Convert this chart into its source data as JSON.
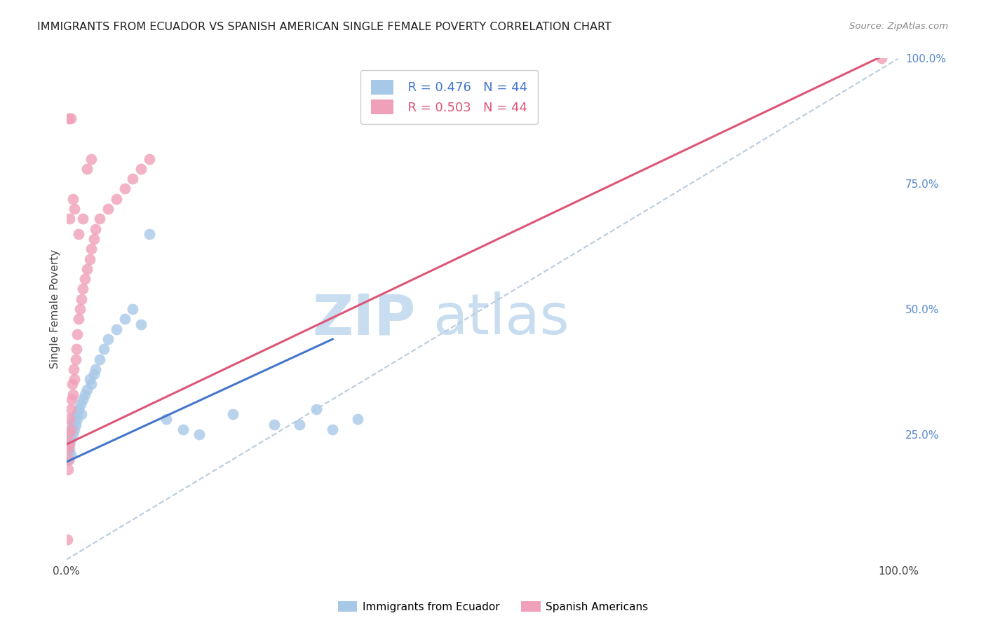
{
  "title": "IMMIGRANTS FROM ECUADOR VS SPANISH AMERICAN SINGLE FEMALE POVERTY CORRELATION CHART",
  "source": "Source: ZipAtlas.com",
  "ylabel": "Single Female Poverty",
  "ylabel_right_labels": [
    "100.0%",
    "75.0%",
    "50.0%",
    "25.0%"
  ],
  "ylabel_right_values": [
    1.0,
    0.75,
    0.5,
    0.25
  ],
  "legend_blue_r": "R = 0.476",
  "legend_blue_n": "N = 44",
  "legend_pink_r": "R = 0.503",
  "legend_pink_n": "N = 44",
  "legend_blue_label": "Immigrants from Ecuador",
  "legend_pink_label": "Spanish Americans",
  "blue_color": "#a8c8e8",
  "pink_color": "#f0a0b8",
  "blue_line_color": "#4477cc",
  "pink_line_color": "#dd5577",
  "dashed_line_color": "#bbccdd",
  "watermark_zip_color": "#c8ddf0",
  "watermark_atlas_color": "#c8ddf0",
  "background_color": "#ffffff",
  "grid_color": "#dddddd",
  "blue_line_x0": 0.0,
  "blue_line_y0": 0.195,
  "blue_line_x1": 0.32,
  "blue_line_y1": 0.44,
  "pink_line_x0": 0.0,
  "pink_line_y0": 0.23,
  "pink_line_x1": 1.0,
  "pink_line_y1": 1.02,
  "dashed_line_x0": 0.0,
  "dashed_line_y0": 0.0,
  "dashed_line_x1": 1.0,
  "dashed_line_y1": 1.0,
  "xlim": [
    0.0,
    1.0
  ],
  "ylim": [
    0.0,
    1.0
  ],
  "blue_scatter_x": [
    0.001,
    0.002,
    0.002,
    0.003,
    0.003,
    0.004,
    0.004,
    0.005,
    0.005,
    0.006,
    0.007,
    0.008,
    0.009,
    0.01,
    0.011,
    0.012,
    0.013,
    0.015,
    0.017,
    0.018,
    0.02,
    0.022,
    0.025,
    0.028,
    0.03,
    0.033,
    0.035,
    0.04,
    0.045,
    0.05,
    0.06,
    0.07,
    0.08,
    0.09,
    0.1,
    0.12,
    0.14,
    0.16,
    0.2,
    0.25,
    0.3,
    0.35,
    0.32,
    0.28
  ],
  "blue_scatter_y": [
    0.22,
    0.21,
    0.24,
    0.2,
    0.23,
    0.25,
    0.22,
    0.24,
    0.21,
    0.26,
    0.27,
    0.25,
    0.28,
    0.26,
    0.27,
    0.29,
    0.28,
    0.3,
    0.31,
    0.29,
    0.32,
    0.33,
    0.34,
    0.36,
    0.35,
    0.37,
    0.38,
    0.4,
    0.42,
    0.44,
    0.46,
    0.48,
    0.5,
    0.47,
    0.65,
    0.28,
    0.26,
    0.25,
    0.29,
    0.27,
    0.3,
    0.28,
    0.26,
    0.27
  ],
  "pink_scatter_x": [
    0.001,
    0.002,
    0.002,
    0.003,
    0.003,
    0.004,
    0.004,
    0.005,
    0.005,
    0.006,
    0.007,
    0.008,
    0.009,
    0.01,
    0.011,
    0.012,
    0.013,
    0.015,
    0.016,
    0.018,
    0.02,
    0.022,
    0.025,
    0.028,
    0.03,
    0.033,
    0.035,
    0.04,
    0.05,
    0.06,
    0.07,
    0.08,
    0.09,
    0.1,
    0.025,
    0.03,
    0.015,
    0.02,
    0.01,
    0.008,
    0.005,
    0.004,
    0.003,
    0.98
  ],
  "pink_scatter_y": [
    0.04,
    0.22,
    0.18,
    0.25,
    0.2,
    0.28,
    0.23,
    0.3,
    0.26,
    0.32,
    0.35,
    0.33,
    0.38,
    0.36,
    0.4,
    0.42,
    0.45,
    0.48,
    0.5,
    0.52,
    0.54,
    0.56,
    0.58,
    0.6,
    0.62,
    0.64,
    0.66,
    0.68,
    0.7,
    0.72,
    0.74,
    0.76,
    0.78,
    0.8,
    0.78,
    0.8,
    0.65,
    0.68,
    0.7,
    0.72,
    0.88,
    0.68,
    0.88,
    1.0
  ]
}
